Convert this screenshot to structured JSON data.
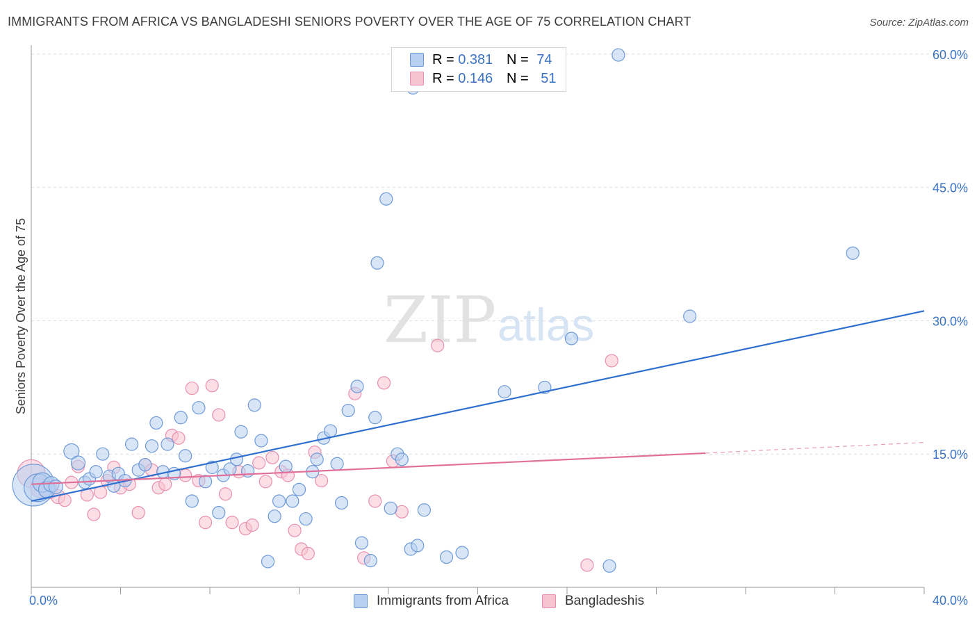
{
  "title": "IMMIGRANTS FROM AFRICA VS BANGLADESHI SENIORS POVERTY OVER THE AGE OF 75 CORRELATION CHART",
  "source": "Source: ZipAtlas.com",
  "watermark": {
    "zip": "ZIP",
    "atlas": "atlas"
  },
  "legend_top": [
    {
      "r_label": "R = ",
      "r_value": "0.381",
      "n_label": "N = ",
      "n_value": "74"
    },
    {
      "r_label": "R = ",
      "r_value": "0.146",
      "n_label": "N = ",
      "n_value": "51"
    }
  ],
  "colors": {
    "blue_fill": "#b7cff0",
    "blue_stroke": "#6e9ad8",
    "blue_line": "#2f6fcf",
    "pink_fill": "#f7c3d2",
    "pink_stroke": "#e891ad",
    "pink_line": "#e0709a",
    "axis_label": "#3b73c4",
    "grid": "#dddddd"
  },
  "chart_data": {
    "type": "scatter",
    "title": "IMMIGRANTS FROM AFRICA VS BANGLADESHI SENIORS POVERTY OVER THE AGE OF 75 CORRELATION CHART",
    "xlabel": "",
    "ylabel": "Seniors Poverty Over the Age of 75",
    "xlim": [
      0,
      40
    ],
    "ylim": [
      0,
      61
    ],
    "x_tick_labels": [
      {
        "value": 0,
        "label": "0.0%"
      },
      {
        "value": 40,
        "label": "40.0%"
      }
    ],
    "y_tick_labels": [
      {
        "value": 15,
        "label": "15.0%"
      },
      {
        "value": 30,
        "label": "30.0%"
      },
      {
        "value": 45,
        "label": "45.0%"
      },
      {
        "value": 60,
        "label": "60.0%"
      }
    ],
    "grid": "horizontal dashed",
    "legend_position": "bottom",
    "series": [
      {
        "name": "Immigrants from Africa",
        "color": "blue",
        "trend": {
          "x": [
            0,
            40
          ],
          "y": [
            9.7,
            31.1
          ]
        },
        "points": [
          [
            0.1,
            11.5,
            30
          ],
          [
            0.3,
            11.2,
            20
          ],
          [
            0.5,
            11.8,
            14
          ],
          [
            0.7,
            11.0,
            12
          ],
          [
            0.9,
            11.6,
            11
          ],
          [
            1.1,
            11.3,
            10
          ],
          [
            1.8,
            15.3,
            11
          ],
          [
            2.1,
            14.0,
            10
          ],
          [
            2.4,
            11.8,
            9
          ],
          [
            2.6,
            12.2,
            9
          ],
          [
            2.9,
            13.0,
            9
          ],
          [
            3.2,
            15.0,
            9
          ],
          [
            3.5,
            12.5,
            9
          ],
          [
            3.7,
            11.4,
            9
          ],
          [
            3.9,
            12.8,
            9
          ],
          [
            4.2,
            12.0,
            9
          ],
          [
            4.5,
            16.1,
            9
          ],
          [
            4.8,
            13.2,
            9
          ],
          [
            5.1,
            13.8,
            9
          ],
          [
            5.4,
            15.9,
            9
          ],
          [
            5.6,
            18.5,
            9
          ],
          [
            5.9,
            13.0,
            9
          ],
          [
            6.1,
            16.1,
            9
          ],
          [
            6.4,
            12.8,
            9
          ],
          [
            6.7,
            19.1,
            9
          ],
          [
            6.9,
            14.8,
            9
          ],
          [
            7.2,
            9.7,
            9
          ],
          [
            7.5,
            20.2,
            9
          ],
          [
            7.8,
            11.9,
            9
          ],
          [
            8.1,
            13.5,
            9
          ],
          [
            8.4,
            8.4,
            9
          ],
          [
            8.6,
            12.6,
            9
          ],
          [
            8.9,
            13.3,
            9
          ],
          [
            9.2,
            14.4,
            9
          ],
          [
            9.4,
            17.5,
            9
          ],
          [
            9.7,
            13.1,
            9
          ],
          [
            10.0,
            20.5,
            9
          ],
          [
            10.3,
            16.5,
            9
          ],
          [
            10.6,
            2.9,
            9
          ],
          [
            10.9,
            8.0,
            9
          ],
          [
            11.1,
            9.7,
            9
          ],
          [
            11.4,
            13.6,
            9
          ],
          [
            11.7,
            9.7,
            9
          ],
          [
            12.0,
            11.0,
            9
          ],
          [
            12.3,
            7.7,
            9
          ],
          [
            12.6,
            13.0,
            9
          ],
          [
            12.8,
            14.4,
            9
          ],
          [
            13.1,
            16.8,
            9
          ],
          [
            13.4,
            17.6,
            9
          ],
          [
            13.7,
            13.9,
            9
          ],
          [
            13.9,
            9.5,
            9
          ],
          [
            14.2,
            19.9,
            9
          ],
          [
            14.6,
            22.6,
            9
          ],
          [
            14.8,
            5.0,
            9
          ],
          [
            15.2,
            3.0,
            9
          ],
          [
            15.4,
            19.1,
            9
          ],
          [
            15.5,
            36.5,
            9
          ],
          [
            15.9,
            43.7,
            9
          ],
          [
            16.1,
            8.9,
            9
          ],
          [
            16.4,
            15.0,
            9
          ],
          [
            16.6,
            14.4,
            9
          ],
          [
            17.0,
            4.3,
            9
          ],
          [
            17.3,
            4.7,
            9
          ],
          [
            17.6,
            8.7,
            9
          ],
          [
            17.1,
            56.2,
            9
          ],
          [
            18.6,
            3.4,
            9
          ],
          [
            19.3,
            3.9,
            9
          ],
          [
            21.2,
            22.0,
            9
          ],
          [
            23.0,
            22.5,
            9
          ],
          [
            24.2,
            28.0,
            9
          ],
          [
            25.9,
            2.4,
            9
          ],
          [
            26.3,
            59.9,
            9
          ],
          [
            29.5,
            30.5,
            9
          ],
          [
            36.8,
            37.6,
            9
          ]
        ]
      },
      {
        "name": "Bangladeshis",
        "color": "pink",
        "trend": {
          "x": [
            0,
            30.2
          ],
          "y": [
            11.6,
            15.1
          ],
          "dashed_to": {
            "x": 40,
            "y": 16.3
          }
        },
        "points": [
          [
            0.0,
            12.8,
            20
          ],
          [
            0.4,
            11.2,
            14
          ],
          [
            0.8,
            10.9,
            12
          ],
          [
            1.2,
            10.2,
            10
          ],
          [
            1.5,
            9.8,
            9
          ],
          [
            1.8,
            11.8,
            9
          ],
          [
            2.1,
            13.6,
            9
          ],
          [
            2.5,
            10.4,
            9
          ],
          [
            2.8,
            8.2,
            9
          ],
          [
            3.1,
            10.7,
            9
          ],
          [
            3.4,
            12.0,
            9
          ],
          [
            3.7,
            13.5,
            9
          ],
          [
            4.0,
            11.2,
            9
          ],
          [
            4.4,
            11.6,
            9
          ],
          [
            4.8,
            8.4,
            9
          ],
          [
            5.1,
            13.8,
            9
          ],
          [
            5.4,
            13.2,
            9
          ],
          [
            5.7,
            11.2,
            9
          ],
          [
            6.0,
            11.6,
            9
          ],
          [
            6.3,
            17.1,
            9
          ],
          [
            6.6,
            16.8,
            9
          ],
          [
            6.9,
            12.6,
            9
          ],
          [
            7.2,
            22.4,
            9
          ],
          [
            7.5,
            12.0,
            9
          ],
          [
            7.8,
            7.3,
            9
          ],
          [
            8.1,
            22.7,
            9
          ],
          [
            8.4,
            19.4,
            9
          ],
          [
            8.7,
            10.5,
            9
          ],
          [
            9.0,
            7.3,
            9
          ],
          [
            9.3,
            13.0,
            9
          ],
          [
            9.6,
            6.6,
            9
          ],
          [
            9.9,
            7.0,
            9
          ],
          [
            10.2,
            14.0,
            9
          ],
          [
            10.5,
            11.9,
            9
          ],
          [
            10.8,
            14.6,
            9
          ],
          [
            11.2,
            13.0,
            9
          ],
          [
            11.5,
            12.6,
            9
          ],
          [
            11.8,
            6.4,
            9
          ],
          [
            12.1,
            4.3,
            9
          ],
          [
            12.4,
            3.8,
            9
          ],
          [
            12.7,
            15.2,
            9
          ],
          [
            13.0,
            12.0,
            9
          ],
          [
            14.5,
            21.8,
            9
          ],
          [
            14.9,
            3.3,
            9
          ],
          [
            15.4,
            9.7,
            9
          ],
          [
            15.8,
            23.0,
            9
          ],
          [
            16.2,
            14.2,
            9
          ],
          [
            16.6,
            8.5,
            9
          ],
          [
            18.2,
            27.2,
            9
          ],
          [
            26.0,
            25.5,
            9
          ],
          [
            24.9,
            2.5,
            9
          ]
        ]
      }
    ]
  },
  "legend_bottom": [
    {
      "label": "Immigrants from Africa",
      "color": "blue"
    },
    {
      "label": "Bangladeshis",
      "color": "pink"
    }
  ]
}
